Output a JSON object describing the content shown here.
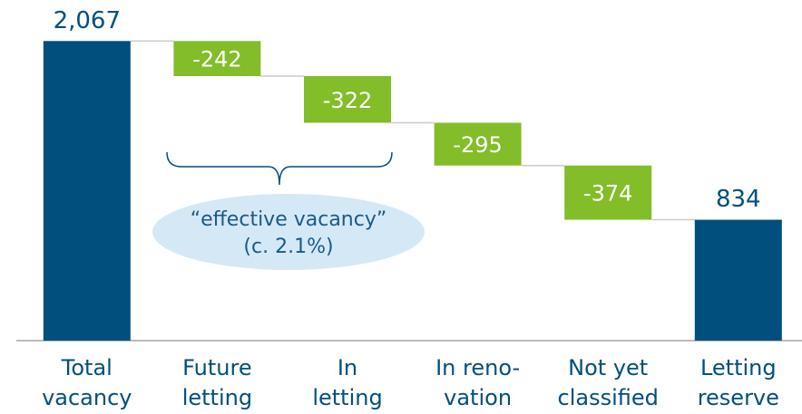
{
  "chart_data": {
    "type": "waterfall",
    "categories": [
      [
        "Total",
        "vacancy"
      ],
      [
        "Future",
        "letting"
      ],
      [
        "In",
        "letting"
      ],
      [
        "In reno-",
        "vation"
      ],
      [
        "Not yet",
        "classified"
      ],
      [
        "Letting",
        "reserve"
      ]
    ],
    "measure": [
      "total",
      "relative",
      "relative",
      "relative",
      "relative",
      "total"
    ],
    "values": [
      2067,
      -242,
      -322,
      -295,
      -374,
      834
    ],
    "value_labels": [
      "2,067",
      "-242",
      "-322",
      "-295",
      "-374",
      "834"
    ],
    "total_color": "#004f7c",
    "delta_color": "#84bd2a",
    "ylim": [
      0,
      2200
    ],
    "annotation": [
      "“effective vacancy”",
      "(c. 2.1%)"
    ]
  }
}
